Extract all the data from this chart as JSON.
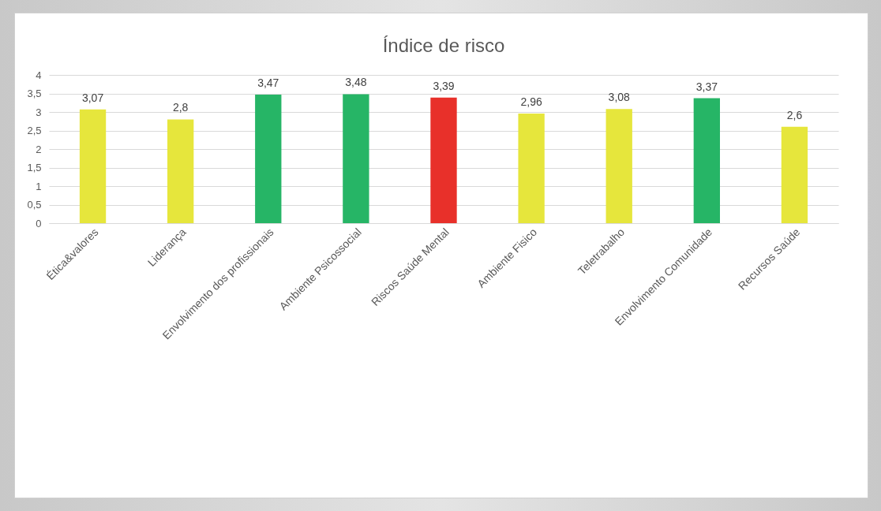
{
  "chart_data": {
    "type": "bar",
    "title": "Índice de risco",
    "categories": [
      "Ética&valores",
      "Liderança",
      "Envolvimento dos profissionais",
      "Ambiente Psicossocial",
      "Riscos Saúde Mental",
      "Ambiente Fisico",
      "Teletrabalho",
      "Envolvimento Comunidade",
      "Recursos Saúde"
    ],
    "values": [
      3.07,
      2.8,
      3.47,
      3.48,
      3.39,
      2.96,
      3.08,
      3.37,
      2.6
    ],
    "colors": [
      "#e6e63c",
      "#e6e63c",
      "#26b566",
      "#26b566",
      "#e8302a",
      "#e6e63c",
      "#e6e63c",
      "#26b566",
      "#e6e63c"
    ],
    "value_labels": [
      "3,07",
      "2,8",
      "3,47",
      "3,48",
      "3,39",
      "2,96",
      "3,08",
      "3,37",
      "2,6"
    ],
    "ylim": [
      0,
      4
    ],
    "yticks": [
      0,
      {
        "value": 0.5,
        "label": "0,5"
      },
      1,
      {
        "value": 1.5,
        "label": "1,5"
      },
      2,
      {
        "value": 2.5,
        "label": "2,5"
      },
      3,
      {
        "value": 3.5,
        "label": "3,5"
      },
      4
    ],
    "grid": "y"
  }
}
